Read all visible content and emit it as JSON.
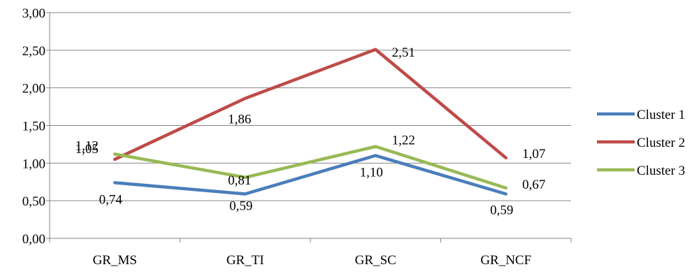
{
  "chart_data": {
    "type": "line",
    "categories": [
      "GR_MS",
      "GR_TI",
      "GR_SC",
      "GR_NCF"
    ],
    "series": [
      {
        "name": "Cluster 1",
        "color": "#4a7ebb",
        "values": [
          0.74,
          0.59,
          1.1,
          0.59
        ],
        "labels": [
          "0,74",
          "0,59",
          "1,10",
          "0,59"
        ]
      },
      {
        "name": "Cluster 2",
        "color": "#be4b48",
        "values": [
          1.05,
          1.86,
          2.51,
          1.07
        ],
        "labels": [
          "1,05",
          "1,86",
          "2,51",
          "1,07"
        ]
      },
      {
        "name": "Cluster 3",
        "color": "#98b954",
        "values": [
          1.12,
          0.81,
          1.22,
          0.67
        ],
        "labels": [
          "1,12",
          "0,81",
          "1,22",
          "0,67"
        ]
      }
    ],
    "y_ticks": [
      "0,00",
      "0,50",
      "1,00",
      "1,50",
      "2,00",
      "2,50",
      "3,00"
    ],
    "ylim": [
      0,
      3
    ],
    "grid": "horizontal",
    "legend_position": "right"
  }
}
